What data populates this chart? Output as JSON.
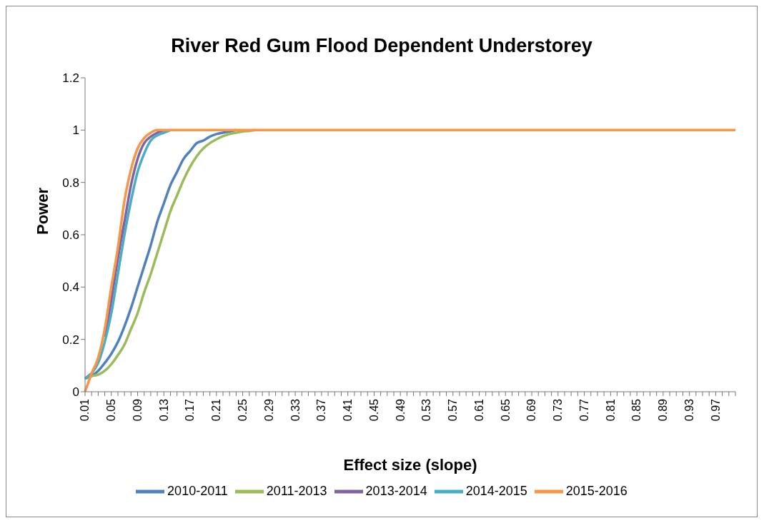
{
  "chart_data": {
    "type": "line",
    "title": "River Red Gum Flood Dependent Understorey",
    "xlabel": "Effect size (slope)",
    "ylabel": "Power",
    "categories": [
      "0.01",
      null,
      null,
      null,
      "0.05",
      null,
      null,
      null,
      "0.09",
      null,
      null,
      null,
      "0.13",
      null,
      null,
      null,
      "0.17",
      null,
      null,
      null,
      "0.21",
      null,
      null,
      null,
      "0.25",
      null,
      null,
      null,
      "0.29",
      null,
      null,
      null,
      "0.33",
      null,
      null,
      null,
      "0.37",
      null,
      null,
      null,
      "0.41",
      null,
      null,
      null,
      "0.45",
      null,
      null,
      null,
      "0.49",
      null,
      null,
      null,
      "0.53",
      null,
      null,
      null,
      "0.57",
      null,
      null,
      null,
      "0.61",
      null,
      null,
      null,
      "0.65",
      null,
      null,
      null,
      "0.69",
      null,
      null,
      null,
      "0.73",
      null,
      null,
      null,
      "0.77",
      null,
      null,
      null,
      "0.81",
      null,
      null,
      null,
      "0.85",
      null,
      null,
      null,
      "0.89",
      null,
      null,
      null,
      "0.93",
      null,
      null,
      null,
      "0.97",
      null,
      null,
      null
    ],
    "series": [
      {
        "name": "2010-2011",
        "color": "#4f81bd",
        "values": [
          0.05,
          0.06,
          0.08,
          0.11,
          0.145,
          0.19,
          0.25,
          0.32,
          0.4,
          0.48,
          0.56,
          0.65,
          0.72,
          0.79,
          0.84,
          0.89,
          0.92,
          0.95,
          0.96,
          0.975,
          0.985,
          0.99,
          0.995,
          1,
          null,
          null,
          null,
          null,
          null,
          null,
          null,
          null,
          null,
          null,
          null,
          null,
          null,
          null,
          null,
          null,
          null,
          null,
          null,
          null,
          null,
          null,
          null,
          null,
          null,
          null,
          null,
          null,
          null,
          null,
          null,
          null,
          null,
          null,
          null,
          null,
          null,
          null,
          null,
          null,
          null,
          null,
          null,
          null,
          null,
          null,
          null,
          null,
          null,
          null,
          null,
          null,
          null,
          null,
          null,
          null,
          null,
          null,
          null,
          null,
          null,
          null,
          null,
          null,
          null,
          null,
          null,
          null,
          null,
          null,
          null,
          null,
          null,
          null,
          null,
          null
        ]
      },
      {
        "name": "2011-2013",
        "color": "#9bbb59",
        "values": [
          0.05,
          0.06,
          0.065,
          0.08,
          0.105,
          0.14,
          0.18,
          0.24,
          0.3,
          0.38,
          0.45,
          0.53,
          0.61,
          0.69,
          0.75,
          0.81,
          0.86,
          0.9,
          0.93,
          0.95,
          0.965,
          0.977,
          0.985,
          0.99,
          0.995,
          0.997,
          1,
          null,
          null,
          null,
          null,
          null,
          null,
          null,
          null,
          null,
          null,
          null,
          null,
          null,
          null,
          null,
          null,
          null,
          null,
          null,
          null,
          null,
          null,
          null,
          null,
          null,
          null,
          null,
          null,
          null,
          null,
          null,
          null,
          null,
          null,
          null,
          null,
          null,
          null,
          null,
          null,
          null,
          null,
          null,
          null,
          null,
          null,
          null,
          null,
          null,
          null,
          null,
          null,
          null,
          null,
          null,
          null,
          null,
          null,
          null,
          null,
          null,
          null,
          null,
          null,
          null,
          null,
          null,
          null,
          null,
          null,
          null,
          null,
          null
        ]
      },
      {
        "name": "2013-2014",
        "color": "#8064a2",
        "values": [
          0.05,
          0.07,
          null,
          0.21,
          0.35,
          0.51,
          0.65,
          0.79,
          0.89,
          0.95,
          0.975,
          0.99,
          1,
          null,
          null,
          null,
          null,
          null,
          null,
          null,
          null,
          null,
          null,
          null,
          null,
          null,
          null,
          null,
          null,
          null,
          null,
          null,
          null,
          null,
          null,
          null,
          null,
          null,
          null,
          null,
          null,
          null,
          null,
          null,
          null,
          null,
          null,
          null,
          null,
          null,
          null,
          null,
          null,
          null,
          null,
          null,
          null,
          null,
          null,
          null,
          null,
          null,
          null,
          null,
          null,
          null,
          null,
          null,
          null,
          null,
          null,
          null,
          null,
          null,
          null,
          null,
          null,
          null,
          null,
          null,
          null,
          null,
          null,
          null,
          null,
          null,
          null,
          null,
          null,
          null,
          null,
          null,
          null,
          null,
          null,
          null,
          null,
          null,
          null,
          null
        ]
      },
      {
        "name": "2014-2015",
        "color": "#4bacc6",
        "values": [
          0.05,
          0.07,
          0.11,
          0.19,
          0.3,
          0.45,
          0.6,
          0.73,
          0.84,
          0.91,
          0.96,
          0.98,
          0.99,
          1,
          null,
          null,
          null,
          null,
          null,
          null,
          null,
          null,
          null,
          null,
          null,
          null,
          null,
          null,
          null,
          null,
          null,
          null,
          null,
          null,
          null,
          null,
          null,
          null,
          null,
          null,
          null,
          null,
          null,
          null,
          null,
          null,
          null,
          null,
          null,
          null,
          null,
          null,
          null,
          null,
          null,
          null,
          null,
          null,
          null,
          null,
          null,
          null,
          null,
          null,
          null,
          null,
          null,
          null,
          null,
          null,
          null,
          null,
          null,
          null,
          null,
          null,
          null,
          null,
          null,
          null,
          null,
          null,
          null,
          null,
          null,
          null,
          null,
          null,
          null,
          null,
          null,
          null,
          null,
          null,
          null,
          null,
          null,
          null,
          null,
          null
        ]
      },
      {
        "name": "2015-2016",
        "color": "#f79646",
        "values": [
          0,
          0.07,
          0.13,
          0.24,
          0.4,
          0.55,
          0.73,
          0.85,
          0.93,
          0.97,
          0.99,
          1,
          1,
          1,
          1,
          1,
          1,
          1,
          1,
          1,
          1,
          1,
          1,
          1,
          1,
          1,
          1,
          1,
          1,
          1,
          1,
          1,
          1,
          1,
          1,
          1,
          1,
          1,
          1,
          1,
          1,
          1,
          1,
          1,
          1,
          1,
          1,
          1,
          1,
          1,
          1,
          1,
          1,
          1,
          1,
          1,
          1,
          1,
          1,
          1,
          1,
          1,
          1,
          1,
          1,
          1,
          1,
          1,
          1,
          1,
          1,
          1,
          1,
          1,
          1,
          1,
          1,
          1,
          1,
          1,
          1,
          1,
          1,
          1,
          1,
          1,
          1,
          1,
          1,
          1,
          1,
          1,
          1,
          1,
          1,
          1,
          1,
          1,
          1,
          1
        ]
      }
    ],
    "ylim": [
      0,
      1.2
    ],
    "yticks": [
      0,
      0.2,
      0.4,
      0.6,
      0.8,
      1,
      1.2
    ],
    "grid": false,
    "legend": "bottom",
    "marker": "none",
    "line_style": "solid"
  }
}
